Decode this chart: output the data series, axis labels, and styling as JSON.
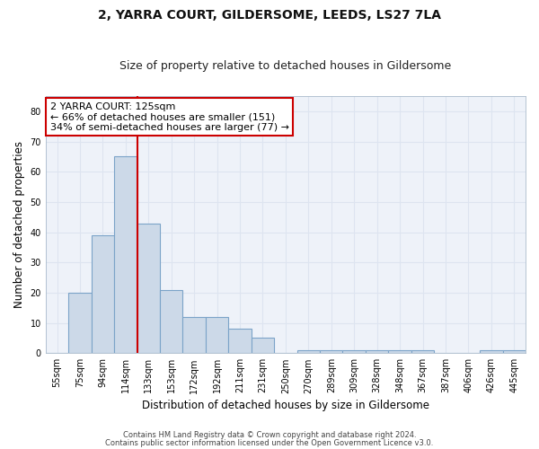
{
  "title1": "2, YARRA COURT, GILDERSOME, LEEDS, LS27 7LA",
  "title2": "Size of property relative to detached houses in Gildersome",
  "xlabel": "Distribution of detached houses by size in Gildersome",
  "ylabel": "Number of detached properties",
  "bin_labels": [
    "55sqm",
    "75sqm",
    "94sqm",
    "114sqm",
    "133sqm",
    "153sqm",
    "172sqm",
    "192sqm",
    "211sqm",
    "231sqm",
    "250sqm",
    "270sqm",
    "289sqm",
    "309sqm",
    "328sqm",
    "348sqm",
    "367sqm",
    "387sqm",
    "406sqm",
    "426sqm",
    "445sqm"
  ],
  "bar_values": [
    0,
    20,
    39,
    65,
    43,
    21,
    12,
    12,
    8,
    5,
    0,
    1,
    1,
    1,
    1,
    1,
    1,
    0,
    0,
    1,
    1
  ],
  "bar_color": "#ccd9e8",
  "bar_edgecolor": "#7ba3c8",
  "annotation_line1": "2 YARRA COURT: 125sqm",
  "annotation_line2": "← 66% of detached houses are smaller (151)",
  "annotation_line3": "34% of semi-detached houses are larger (77) →",
  "annotation_box_color": "#ffffff",
  "annotation_box_edgecolor": "#cc0000",
  "footnote1": "Contains HM Land Registry data © Crown copyright and database right 2024.",
  "footnote2": "Contains public sector information licensed under the Open Government Licence v3.0.",
  "ylim": [
    0,
    85
  ],
  "yticks": [
    0,
    10,
    20,
    30,
    40,
    50,
    60,
    70,
    80
  ],
  "grid_color": "#dde4f0",
  "background_color": "#eef2f9",
  "title1_fontsize": 10,
  "title2_fontsize": 9,
  "xlabel_fontsize": 8.5,
  "ylabel_fontsize": 8.5,
  "tick_fontsize": 7,
  "annot_fontsize": 8
}
